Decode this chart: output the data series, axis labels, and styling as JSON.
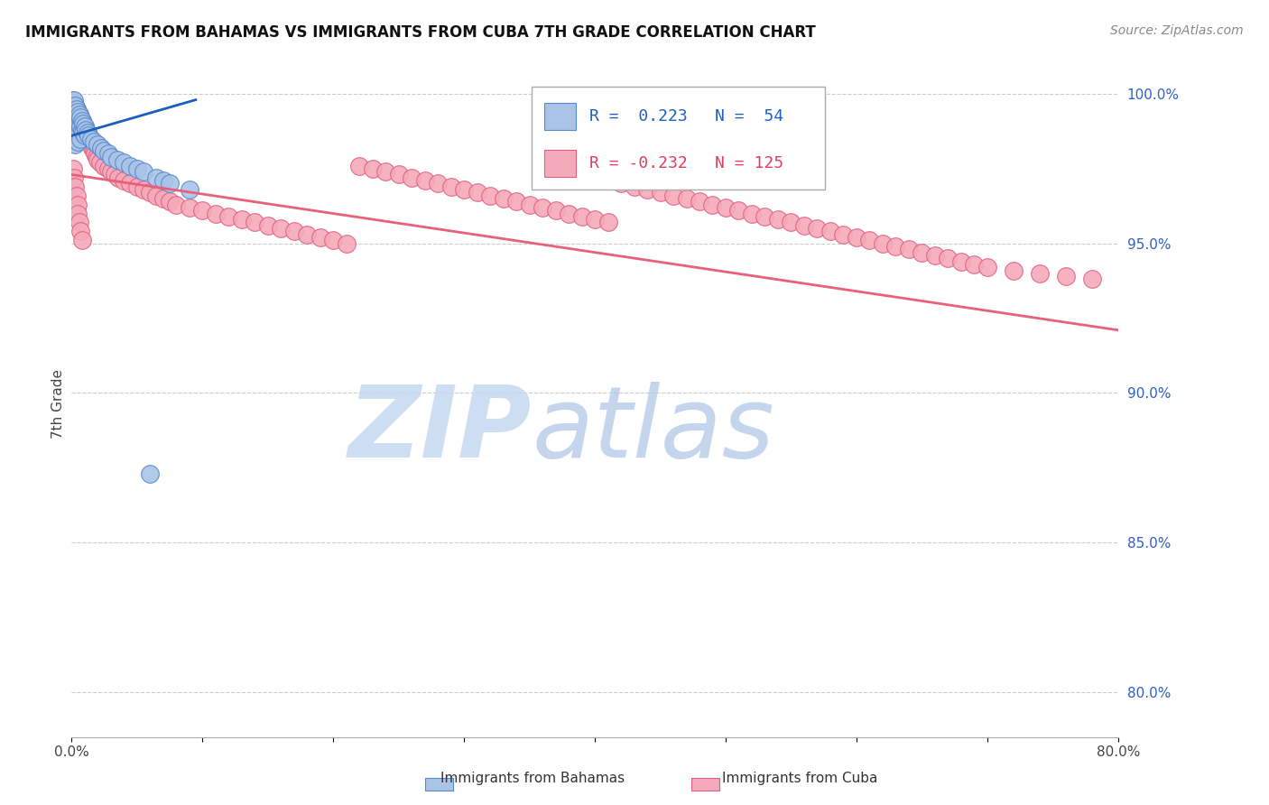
{
  "title": "IMMIGRANTS FROM BAHAMAS VS IMMIGRANTS FROM CUBA 7TH GRADE CORRELATION CHART",
  "source": "Source: ZipAtlas.com",
  "ylabel": "7th Grade",
  "xlim": [
    0.0,
    0.8
  ],
  "ylim": [
    0.785,
    1.008
  ],
  "yticks_right": [
    1.0,
    0.95,
    0.9,
    0.85,
    0.8
  ],
  "ytick_right_labels": [
    "100.0%",
    "95.0%",
    "90.0%",
    "85.0%",
    "80.0%"
  ],
  "bahamas_color": "#aac4e8",
  "bahamas_edge": "#5588cc",
  "cuba_color": "#f5aabb",
  "cuba_edge": "#e06080",
  "trendline_bahamas_color": "#1a5ebf",
  "trendline_cuba_color": "#e8607a",
  "legend_R_bahamas": "R =  0.223",
  "legend_N_bahamas": "N =  54",
  "legend_R_cuba": "R = -0.232",
  "legend_N_cuba": "N = 125",
  "bahamas_x": [
    0.001,
    0.001,
    0.001,
    0.001,
    0.002,
    0.002,
    0.002,
    0.002,
    0.002,
    0.003,
    0.003,
    0.003,
    0.003,
    0.003,
    0.004,
    0.004,
    0.004,
    0.004,
    0.005,
    0.005,
    0.005,
    0.005,
    0.006,
    0.006,
    0.006,
    0.007,
    0.007,
    0.007,
    0.008,
    0.008,
    0.009,
    0.009,
    0.01,
    0.01,
    0.011,
    0.012,
    0.013,
    0.015,
    0.017,
    0.02,
    0.023,
    0.025,
    0.028,
    0.03,
    0.035,
    0.04,
    0.045,
    0.05,
    0.055,
    0.06,
    0.065,
    0.07,
    0.075,
    0.09
  ],
  "bahamas_y": [
    0.997,
    0.995,
    0.993,
    0.99,
    0.998,
    0.995,
    0.992,
    0.988,
    0.985,
    0.996,
    0.993,
    0.99,
    0.987,
    0.983,
    0.995,
    0.992,
    0.989,
    0.985,
    0.994,
    0.991,
    0.988,
    0.984,
    0.993,
    0.99,
    0.987,
    0.992,
    0.989,
    0.985,
    0.991,
    0.988,
    0.99,
    0.987,
    0.989,
    0.986,
    0.988,
    0.987,
    0.986,
    0.985,
    0.984,
    0.983,
    0.982,
    0.981,
    0.98,
    0.979,
    0.978,
    0.977,
    0.976,
    0.975,
    0.974,
    0.873,
    0.972,
    0.971,
    0.97,
    0.968
  ],
  "cuba_x": [
    0.001,
    0.001,
    0.001,
    0.002,
    0.002,
    0.002,
    0.002,
    0.003,
    0.003,
    0.003,
    0.004,
    0.004,
    0.004,
    0.005,
    0.005,
    0.005,
    0.006,
    0.006,
    0.007,
    0.007,
    0.008,
    0.008,
    0.009,
    0.009,
    0.01,
    0.01,
    0.011,
    0.012,
    0.013,
    0.014,
    0.015,
    0.016,
    0.017,
    0.018,
    0.019,
    0.02,
    0.022,
    0.025,
    0.028,
    0.03,
    0.033,
    0.036,
    0.04,
    0.045,
    0.05,
    0.055,
    0.06,
    0.065,
    0.07,
    0.075,
    0.08,
    0.09,
    0.1,
    0.11,
    0.12,
    0.13,
    0.14,
    0.15,
    0.16,
    0.17,
    0.18,
    0.19,
    0.2,
    0.21,
    0.22,
    0.23,
    0.24,
    0.25,
    0.26,
    0.27,
    0.28,
    0.29,
    0.3,
    0.31,
    0.32,
    0.33,
    0.34,
    0.35,
    0.36,
    0.37,
    0.38,
    0.39,
    0.4,
    0.41,
    0.42,
    0.43,
    0.44,
    0.45,
    0.46,
    0.47,
    0.48,
    0.49,
    0.5,
    0.51,
    0.52,
    0.53,
    0.54,
    0.55,
    0.56,
    0.57,
    0.58,
    0.59,
    0.6,
    0.61,
    0.62,
    0.63,
    0.64,
    0.65,
    0.66,
    0.67,
    0.68,
    0.69,
    0.7,
    0.72,
    0.74,
    0.76,
    0.78,
    0.001,
    0.002,
    0.003,
    0.004,
    0.005,
    0.005,
    0.006,
    0.007,
    0.008
  ],
  "cuba_y": [
    0.998,
    0.995,
    0.992,
    0.997,
    0.994,
    0.991,
    0.988,
    0.996,
    0.993,
    0.989,
    0.995,
    0.992,
    0.988,
    0.994,
    0.991,
    0.987,
    0.993,
    0.989,
    0.992,
    0.988,
    0.991,
    0.987,
    0.99,
    0.986,
    0.989,
    0.985,
    0.988,
    0.987,
    0.986,
    0.984,
    0.983,
    0.982,
    0.981,
    0.98,
    0.979,
    0.978,
    0.977,
    0.976,
    0.975,
    0.974,
    0.973,
    0.972,
    0.971,
    0.97,
    0.969,
    0.968,
    0.967,
    0.966,
    0.965,
    0.964,
    0.963,
    0.962,
    0.961,
    0.96,
    0.959,
    0.958,
    0.957,
    0.956,
    0.955,
    0.954,
    0.953,
    0.952,
    0.951,
    0.95,
    0.976,
    0.975,
    0.974,
    0.973,
    0.972,
    0.971,
    0.97,
    0.969,
    0.968,
    0.967,
    0.966,
    0.965,
    0.964,
    0.963,
    0.962,
    0.961,
    0.96,
    0.959,
    0.958,
    0.957,
    0.97,
    0.969,
    0.968,
    0.967,
    0.966,
    0.965,
    0.964,
    0.963,
    0.962,
    0.961,
    0.96,
    0.959,
    0.958,
    0.957,
    0.956,
    0.955,
    0.954,
    0.953,
    0.952,
    0.951,
    0.95,
    0.949,
    0.948,
    0.947,
    0.946,
    0.945,
    0.944,
    0.943,
    0.942,
    0.941,
    0.94,
    0.939,
    0.938,
    0.975,
    0.972,
    0.969,
    0.966,
    0.963,
    0.96,
    0.957,
    0.954,
    0.951
  ],
  "cuba_trendline_x0": 0.0,
  "cuba_trendline_x1": 0.8,
  "cuba_trendline_y0": 0.973,
  "cuba_trendline_y1": 0.921,
  "bah_trendline_x0": 0.0,
  "bah_trendline_x1": 0.095,
  "bah_trendline_y0": 0.986,
  "bah_trendline_y1": 0.998
}
